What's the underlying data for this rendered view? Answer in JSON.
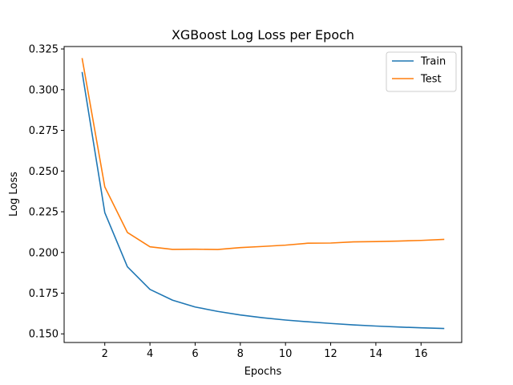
{
  "chart_data": {
    "type": "line",
    "title": "XGBoost Log Loss per Epoch",
    "xlabel": "Epochs",
    "ylabel": "Log Loss",
    "x": [
      1,
      2,
      3,
      4,
      5,
      6,
      7,
      8,
      9,
      10,
      11,
      12,
      13,
      14,
      15,
      16,
      17
    ],
    "xlim": [
      0.2,
      17.8
    ],
    "ylim": [
      0.1447,
      0.3265
    ],
    "xticks": [
      2,
      4,
      6,
      8,
      10,
      12,
      14,
      16
    ],
    "yticks": [
      0.15,
      0.175,
      0.2,
      0.225,
      0.25,
      0.275,
      0.3,
      0.325
    ],
    "xtick_labels": [
      "2",
      "4",
      "6",
      "8",
      "10",
      "12",
      "14",
      "16"
    ],
    "ytick_labels": [
      "0.150",
      "0.175",
      "0.200",
      "0.225",
      "0.250",
      "0.275",
      "0.300",
      "0.325"
    ],
    "grid": false,
    "legend_position": "top-right",
    "series": [
      {
        "name": "Train",
        "color": "#1f77b4",
        "values": [
          0.3105,
          0.2245,
          0.1912,
          0.1773,
          0.1707,
          0.1665,
          0.1638,
          0.1616,
          0.1599,
          0.1585,
          0.1574,
          0.1564,
          0.1555,
          0.1548,
          0.1542,
          0.1537,
          0.1533
        ]
      },
      {
        "name": "Test",
        "color": "#ff7f0e",
        "values": [
          0.319,
          0.2403,
          0.2123,
          0.2035,
          0.2019,
          0.202,
          0.2018,
          0.203,
          0.2037,
          0.2045,
          0.2057,
          0.2058,
          0.2065,
          0.2067,
          0.207,
          0.2074,
          0.208
        ]
      }
    ]
  }
}
